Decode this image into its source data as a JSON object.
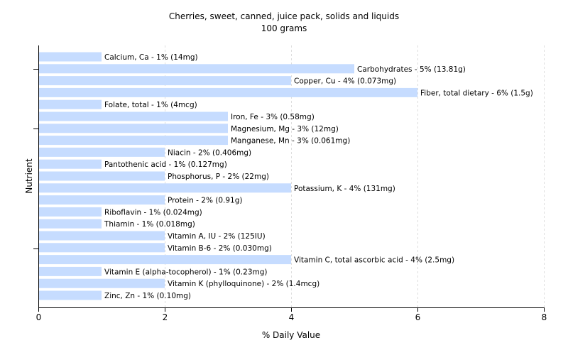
{
  "chart_data": {
    "type": "bar",
    "orientation": "horizontal",
    "title": "Cherries, sweet, canned, juice pack, solids and liquids",
    "subtitle": "100 grams",
    "xlabel": "% Daily Value",
    "ylabel": "Nutrient",
    "xlim": [
      0,
      8
    ],
    "xticks": [
      "0",
      "2",
      "4",
      "6",
      "8"
    ],
    "grid": true,
    "bar_color": "#c6dcff",
    "categories": [
      "Calcium, Ca",
      "Carbohydrates",
      "Copper, Cu",
      "Fiber, total dietary",
      "Folate, total",
      "Iron, Fe",
      "Magnesium, Mg",
      "Manganese, Mn",
      "Niacin",
      "Pantothenic acid",
      "Phosphorus, P",
      "Potassium, K",
      "Protein",
      "Riboflavin",
      "Thiamin",
      "Vitamin A, IU",
      "Vitamin B-6",
      "Vitamin C, total ascorbic acid",
      "Vitamin E (alpha-tocopherol)",
      "Vitamin K (phylloquinone)",
      "Zinc, Zn"
    ],
    "values": [
      1,
      5,
      4,
      6,
      1,
      3,
      3,
      3,
      2,
      1,
      2,
      4,
      2,
      1,
      1,
      2,
      2,
      4,
      1,
      2,
      1
    ],
    "labels": [
      "Calcium, Ca - 1% (14mg)",
      "Carbohydrates - 5% (13.81g)",
      "Copper, Cu - 4% (0.073mg)",
      "Fiber, total dietary - 6% (1.5g)",
      "Folate, total - 1% (4mcg)",
      "Iron, Fe - 3% (0.58mg)",
      "Magnesium, Mg - 3% (12mg)",
      "Manganese, Mn - 3% (0.061mg)",
      "Niacin - 2% (0.406mg)",
      "Pantothenic acid - 1% (0.127mg)",
      "Phosphorus, P - 2% (22mg)",
      "Potassium, K - 4% (131mg)",
      "Protein - 2% (0.91g)",
      "Riboflavin - 1% (0.024mg)",
      "Thiamin - 1% (0.018mg)",
      "Vitamin A, IU - 2% (125IU)",
      "Vitamin B-6 - 2% (0.030mg)",
      "Vitamin C, total ascorbic acid - 4% (2.5mg)",
      "Vitamin E (alpha-tocopherol) - 1% (0.23mg)",
      "Vitamin K (phylloquinone) - 2% (1.4mcg)",
      "Zinc, Zn - 1% (0.10mg)"
    ]
  }
}
